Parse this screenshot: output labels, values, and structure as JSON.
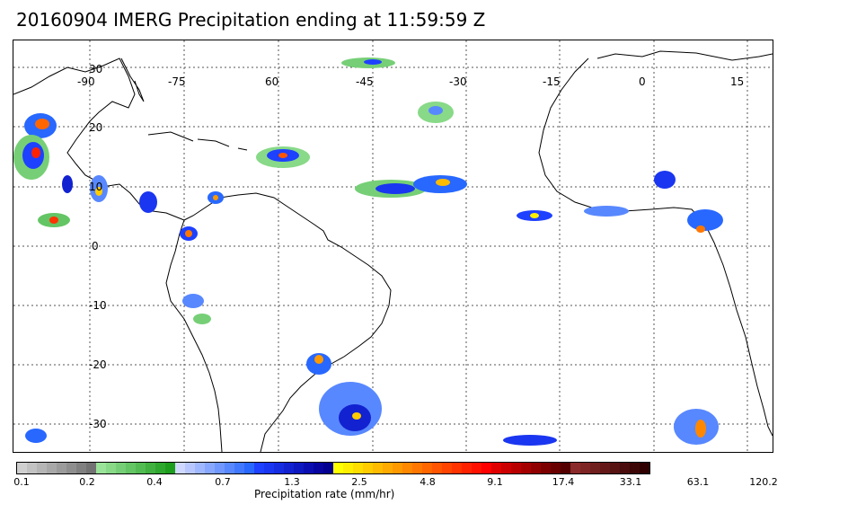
{
  "title": "20160904 IMERG Precipitation ending at 11:59:59 Z",
  "map": {
    "longitude_labels": [
      "-90",
      "-75",
      "60",
      "-45",
      "-30",
      "-15",
      "0",
      "15"
    ],
    "latitude_labels": [
      "30",
      "20",
      "10",
      "0",
      "-10",
      "-20",
      "-30"
    ],
    "grid": "dotted"
  },
  "colorbar": {
    "tick_labels": [
      "0.1",
      "0.2",
      "0.4",
      "0.7",
      "1.3",
      "2.5",
      "4.8",
      "9.1",
      "17.4",
      "33.1",
      "63.1",
      "120.2"
    ],
    "label": "Precipitation rate (mm/hr)",
    "colors": [
      "#d0d0d0",
      "#c2c2c2",
      "#b5b5b5",
      "#a8a8a8",
      "#9b9b9b",
      "#8e8e8e",
      "#808080",
      "#727272",
      "#9ae39a",
      "#88d988",
      "#76cf76",
      "#64c564",
      "#52bb52",
      "#40b140",
      "#2ea72e",
      "#1c9d1c",
      "#d0d8ff",
      "#b8c8ff",
      "#a0b8ff",
      "#88a8ff",
      "#7098ff",
      "#5888ff",
      "#4078ff",
      "#2868ff",
      "#1e40ff",
      "#1a36f0",
      "#162ce0",
      "#1222d0",
      "#0e18c0",
      "#0a0eb0",
      "#0605a0",
      "#030090",
      "#ffff00",
      "#ffee00",
      "#ffdd00",
      "#ffcc00",
      "#ffbb00",
      "#ffaa00",
      "#ff9900",
      "#ff8800",
      "#ff7700",
      "#ff6600",
      "#ff5500",
      "#ff4400",
      "#ff3300",
      "#ff2200",
      "#ff1100",
      "#ff0000",
      "#e00000",
      "#cc0000",
      "#b80000",
      "#a40000",
      "#900000",
      "#7c0000",
      "#680000",
      "#540000",
      "#8b2a2a",
      "#7e2424",
      "#711e1e",
      "#641818",
      "#571212",
      "#4a0c0c",
      "#3d0606",
      "#300000"
    ]
  }
}
